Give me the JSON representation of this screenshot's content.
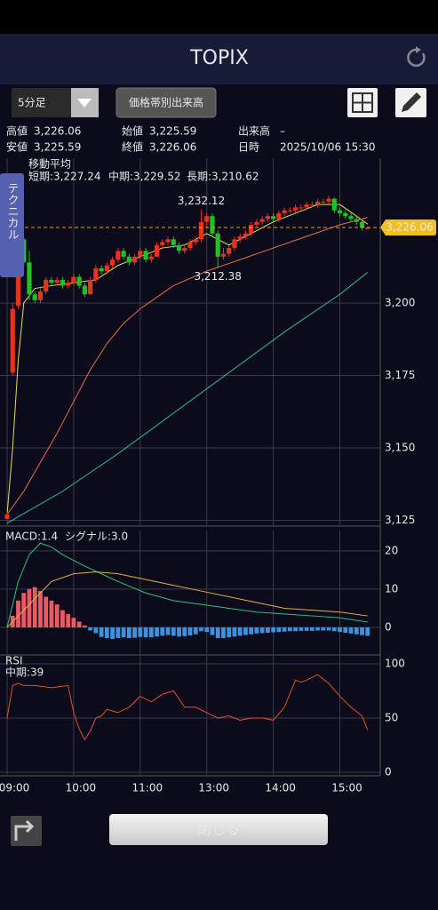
{
  "header": {
    "title": "TOPIX"
  },
  "toolbar": {
    "interval": "5分足",
    "volume_button": "価格帯別出来高"
  },
  "info": [
    {
      "label": "高値",
      "value": "3,226.06"
    },
    {
      "label": "安値",
      "value": "3,225.59"
    },
    {
      "label": "始値",
      "value": "3,225.59"
    },
    {
      "label": "終値",
      "value": "3,226.06"
    },
    {
      "label": "出来高",
      "value": "–"
    },
    {
      "label": "日時",
      "value": "2025/10/06 15:30"
    }
  ],
  "side_tab": "テクニカル",
  "close_button": "閉じる",
  "chart_data": [
    {
      "type": "candlestick",
      "title": "移動平均",
      "up_color": "#e8321e",
      "down_color": "#22c022",
      "xlim": [
        0,
        66
      ],
      "ylim": [
        3123,
        3250
      ],
      "yticks": [
        {
          "value": 3125,
          "label": "3,125"
        },
        {
          "value": 3150,
          "label": "3,150"
        },
        {
          "value": 3175,
          "label": "3,175"
        },
        {
          "value": 3200,
          "label": "3,200"
        }
      ],
      "candles": [
        [
          3125.5,
          3128,
          3125,
          3127
        ],
        [
          3176,
          3200,
          3175,
          3198
        ],
        [
          3199,
          3223,
          3198,
          3222
        ],
        [
          3222,
          3223,
          3213,
          3214
        ],
        [
          3214,
          3218,
          3201,
          3203
        ],
        [
          3203,
          3204,
          3200,
          3201
        ],
        [
          3201,
          3205,
          3200,
          3204
        ],
        [
          3204,
          3209,
          3203,
          3208
        ],
        [
          3208,
          3209,
          3206,
          3207
        ],
        [
          3207,
          3209,
          3206,
          3208
        ],
        [
          3208,
          3209,
          3205,
          3206
        ],
        [
          3206,
          3208,
          3205,
          3207
        ],
        [
          3207,
          3210,
          3206,
          3209
        ],
        [
          3209,
          3210,
          3205,
          3206
        ],
        [
          3206,
          3207,
          3202,
          3203
        ],
        [
          3203,
          3209,
          3203,
          3208
        ],
        [
          3208,
          3213,
          3207,
          3212
        ],
        [
          3212,
          3213,
          3210,
          3211
        ],
        [
          3211,
          3214,
          3210,
          3213
        ],
        [
          3213,
          3216,
          3212,
          3215
        ],
        [
          3215,
          3219,
          3214,
          3218
        ],
        [
          3218,
          3219,
          3215,
          3216
        ],
        [
          3216,
          3217,
          3213,
          3214
        ],
        [
          3214,
          3217,
          3213,
          3216
        ],
        [
          3216,
          3219,
          3215,
          3218
        ],
        [
          3218,
          3219,
          3214,
          3215
        ],
        [
          3215,
          3217,
          3214,
          3216
        ],
        [
          3216,
          3221,
          3216,
          3220
        ],
        [
          3220,
          3222,
          3219,
          3221
        ],
        [
          3221,
          3223,
          3220,
          3222
        ],
        [
          3222,
          3223,
          3219,
          3220
        ],
        [
          3220,
          3221,
          3217,
          3218
        ],
        [
          3218,
          3220,
          3217,
          3219
        ],
        [
          3219,
          3222,
          3218,
          3221
        ],
        [
          3221,
          3223,
          3220,
          3222
        ],
        [
          3222,
          3232.12,
          3221,
          3228
        ],
        [
          3228,
          3231,
          3226,
          3230
        ],
        [
          3230,
          3231,
          3223,
          3224
        ],
        [
          3224,
          3225,
          3212.38,
          3216
        ],
        [
          3216,
          3219,
          3215,
          3217
        ],
        [
          3217,
          3220,
          3216,
          3219
        ],
        [
          3219,
          3223,
          3218,
          3222
        ],
        [
          3222,
          3224,
          3221,
          3223
        ],
        [
          3223,
          3225,
          3222,
          3224
        ],
        [
          3224,
          3228,
          3223,
          3227
        ],
        [
          3227,
          3229,
          3226,
          3228
        ],
        [
          3228,
          3230,
          3227,
          3229
        ],
        [
          3229,
          3231,
          3228,
          3230
        ],
        [
          3230,
          3231,
          3228,
          3229
        ],
        [
          3229,
          3232,
          3228,
          3231
        ],
        [
          3231,
          3233,
          3230,
          3232
        ],
        [
          3232,
          3233,
          3231,
          3232
        ],
        [
          3232,
          3234,
          3231,
          3233
        ],
        [
          3233,
          3234,
          3232,
          3233
        ],
        [
          3233,
          3235,
          3232,
          3234
        ],
        [
          3234,
          3235,
          3233,
          3234
        ],
        [
          3234,
          3236,
          3233,
          3235
        ],
        [
          3235,
          3236,
          3234,
          3235
        ],
        [
          3235,
          3237,
          3234,
          3236
        ],
        [
          3236,
          3236.5,
          3231,
          3232
        ],
        [
          3232,
          3233,
          3230,
          3231
        ],
        [
          3231,
          3232,
          3229,
          3230
        ],
        [
          3230,
          3231,
          3228,
          3229
        ],
        [
          3229,
          3230,
          3227,
          3228
        ],
        [
          3228,
          3229,
          3225,
          3226
        ],
        [
          3225.59,
          3226.06,
          3225.59,
          3226.06
        ]
      ],
      "series": [
        {
          "name": "短期:3,227.24",
          "color": "#e6e04a",
          "x": [
            0,
            1,
            2,
            3,
            5,
            8,
            12,
            16,
            20,
            24,
            28,
            32,
            36,
            40,
            44,
            48,
            52,
            56,
            60,
            63,
            65
          ],
          "values": [
            3127,
            3150,
            3180,
            3200,
            3205,
            3206,
            3207,
            3208,
            3213,
            3216,
            3219,
            3220,
            3224,
            3220,
            3224,
            3228,
            3231,
            3234,
            3234,
            3230,
            3227.24
          ]
        },
        {
          "name": "中期:3,229.52",
          "color": "#e8704a",
          "x": [
            0,
            3,
            6,
            9,
            12,
            15,
            18,
            21,
            24,
            27,
            30,
            36,
            42,
            48,
            54,
            60,
            65
          ],
          "values": [
            3127,
            3135,
            3145,
            3155,
            3166,
            3177,
            3186,
            3193,
            3198,
            3202,
            3206,
            3211,
            3215,
            3219,
            3223,
            3227,
            3229.52
          ]
        },
        {
          "name": "長期:3,210.62",
          "color": "#2ec0a0",
          "x": [
            0,
            10,
            20,
            30,
            40,
            50,
            60,
            65
          ],
          "values": [
            3124,
            3135,
            3148,
            3162,
            3176,
            3190,
            3203,
            3210.62
          ]
        }
      ],
      "annotations": [
        {
          "x": 35,
          "value": 3232.12,
          "label": "3,232.12"
        },
        {
          "x": 38,
          "value": 3212.38,
          "label": "3,212.38"
        }
      ],
      "last": {
        "value": 3226.06,
        "label": "3,226.06"
      }
    },
    {
      "type": "macd",
      "up_color": "#e85a64",
      "down_color": "#3a92e0",
      "xlim": [
        0,
        66
      ],
      "ylim": [
        -7.2,
        25.3
      ],
      "yticks": [
        0,
        10,
        20
      ],
      "histogram": [
        0,
        3,
        7,
        9,
        10,
        10.5,
        9.5,
        8,
        7,
        6,
        4.5,
        3.5,
        2.5,
        1.5,
        0.5,
        -0.8,
        -1.5,
        -2.5,
        -2.8,
        -3,
        -2.8,
        -2.6,
        -2.8,
        -2.7,
        -2.5,
        -2.6,
        -2.6,
        -2.4,
        -2.2,
        -2,
        -2.2,
        -2.4,
        -2.3,
        -2.1,
        -1.8,
        -1,
        -1.2,
        -2,
        -2.8,
        -2.8,
        -2.6,
        -2.4,
        -2.2,
        -2,
        -1.8,
        -1.6,
        -1.5,
        -1.4,
        -1.3,
        -1.2,
        -1.1,
        -1,
        -1,
        -0.9,
        -0.9,
        -0.9,
        -0.8,
        -0.8,
        -0.8,
        -1,
        -1.2,
        -1.4,
        -1.6,
        -1.8,
        -2,
        -2.2
      ],
      "series": [
        {
          "name": "MACD:1.4",
          "color": "#2ec080",
          "x": [
            0,
            2,
            4,
            6,
            8,
            10,
            14,
            20,
            25,
            30,
            35,
            40,
            45,
            50,
            55,
            60,
            65
          ],
          "values": [
            0,
            12,
            19,
            22,
            21,
            19,
            16,
            12,
            9,
            7,
            6,
            5,
            4,
            3.5,
            3,
            2.5,
            1.4
          ]
        },
        {
          "name": "シグナル:3.0",
          "color": "#e0b040",
          "x": [
            0,
            4,
            8,
            12,
            16,
            20,
            25,
            30,
            35,
            40,
            45,
            50,
            55,
            60,
            65
          ],
          "values": [
            0,
            6,
            12,
            14,
            14.5,
            14,
            12.5,
            11,
            9.5,
            8,
            6.5,
            5,
            4.5,
            4,
            3.0
          ]
        }
      ]
    },
    {
      "type": "line",
      "title": "RSI",
      "xlim": [
        0,
        66
      ],
      "ylim": [
        -3.3,
        108.2
      ],
      "yticks": [
        0,
        50,
        100
      ],
      "xticks": [
        {
          "value": 0,
          "label": "09:00"
        },
        {
          "value": 12,
          "label": "10:00"
        },
        {
          "value": 24,
          "label": "11:00"
        },
        {
          "value": 36,
          "label": "13:00"
        },
        {
          "value": 48,
          "label": "14:00"
        },
        {
          "value": 60,
          "label": "15:00"
        }
      ],
      "series": [
        {
          "name": "中期:39",
          "color": "#e0502c",
          "x": [
            0,
            1,
            2,
            3,
            5,
            8,
            11,
            12,
            13,
            14,
            15,
            16,
            17,
            18,
            20,
            22,
            24,
            26,
            28,
            30,
            32,
            34,
            36,
            38,
            40,
            42,
            44,
            46,
            48,
            50,
            52,
            53,
            54,
            56,
            58,
            60,
            62,
            64,
            65
          ],
          "values": [
            50,
            80,
            82,
            80,
            80,
            78,
            80,
            55,
            40,
            30,
            38,
            50,
            52,
            58,
            55,
            60,
            70,
            65,
            72,
            75,
            60,
            60,
            55,
            50,
            52,
            48,
            50,
            50,
            48,
            60,
            85,
            83,
            85,
            90,
            82,
            70,
            60,
            52,
            39
          ]
        }
      ]
    }
  ]
}
